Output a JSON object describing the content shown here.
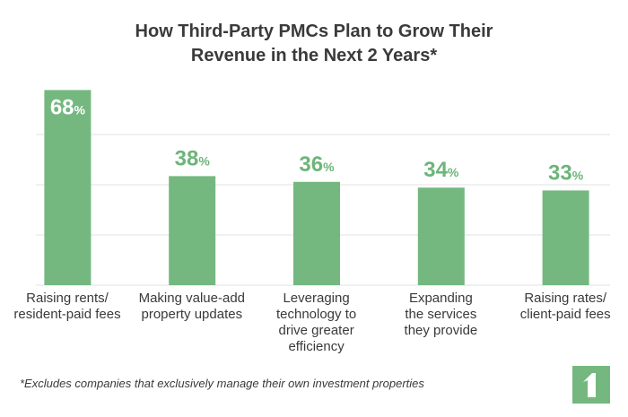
{
  "chart_data": {
    "type": "bar",
    "title": "How Third-Party PMCs Plan to Grow Their\nRevenue in the Next 2 Years*",
    "categories": [
      "Raising rents/\nresident-paid fees",
      "Making value-add\nproperty updates",
      "Leveraging\ntechnology to\ndrive greater\nefficiency",
      "Expanding\nthe services\nthey provide",
      "Raising rates/\nclient-paid fees"
    ],
    "values": [
      68,
      38,
      36,
      34,
      33
    ],
    "unit": "%",
    "color": "#74b880",
    "ylim": [
      0,
      70
    ],
    "grid": true,
    "footnote": "*Excludes companies that exclusively manage their own investment properties"
  }
}
